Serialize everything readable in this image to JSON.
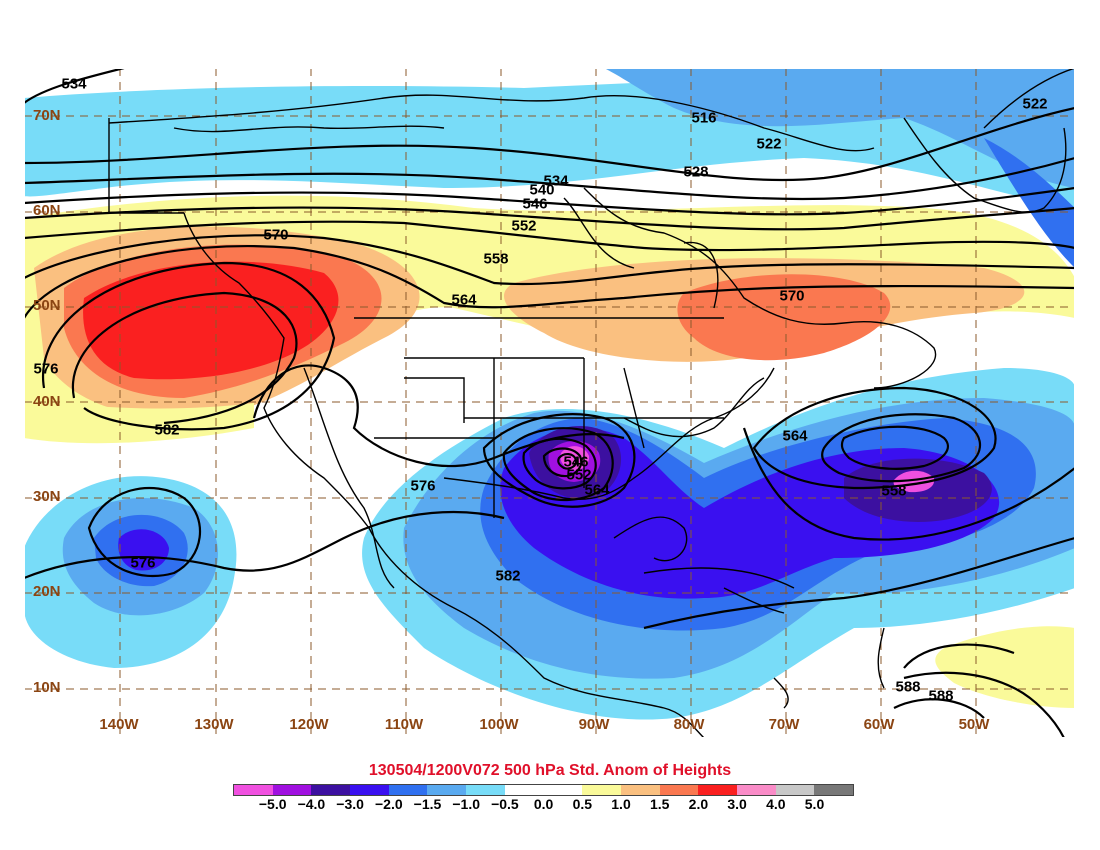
{
  "title": "130504/1200V072 500 hPa Std. Anom of Heights",
  "latitude_labels": [
    "70N",
    "60N",
    "50N",
    "40N",
    "30N",
    "20N",
    "10N"
  ],
  "longitude_labels": [
    "140W",
    "130W",
    "120W",
    "110W",
    "100W",
    "90W",
    "80W",
    "70W",
    "60W",
    "50W"
  ],
  "legend": {
    "colors": [
      "#f050e0",
      "#a010e0",
      "#3c10a0",
      "#3a10f0",
      "#3070f0",
      "#5aaaf0",
      "#78dcf8",
      "#ffffff",
      "#ffffff",
      "#fafa9a",
      "#fac080",
      "#fa7850",
      "#fa2020",
      "#fa8cc8",
      "#c8c8c8",
      "#787878"
    ],
    "ticks": [
      "−5.0",
      "−4.0",
      "−3.0",
      "−2.0",
      "−1.5",
      "−1.0",
      "−0.5",
      "0.0",
      "0.5",
      "1.0",
      "1.5",
      "2.0",
      "3.0",
      "4.0",
      "5.0"
    ]
  },
  "height_contour_labels": [
    "534",
    "516",
    "522",
    "528",
    "534",
    "540",
    "546",
    "552",
    "558",
    "564",
    "570",
    "570",
    "576",
    "582",
    "576",
    "576",
    "582",
    "564",
    "558",
    "546",
    "552",
    "564",
    "588",
    "588",
    "522"
  ]
}
